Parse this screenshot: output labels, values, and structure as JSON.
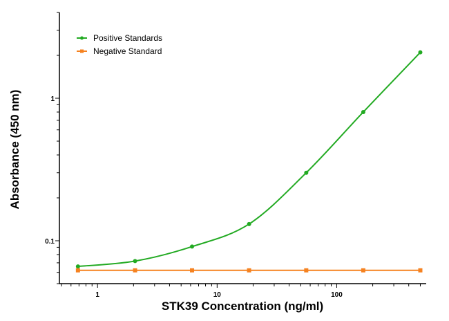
{
  "chart_data": {
    "type": "scatter",
    "xlabel": "STK39 Concentration (ng/ml)",
    "ylabel": "Absorbance (450 nm)",
    "x_scale": "log",
    "y_scale": "log",
    "xlim": [
      0.48,
      560
    ],
    "ylim": [
      0.05,
      4
    ],
    "x_tick_labels": [
      {
        "value": 1,
        "label": "1"
      },
      {
        "value": 10,
        "label": "10"
      },
      {
        "value": 100,
        "label": "100"
      }
    ],
    "y_tick_labels": [
      {
        "value": 0.1,
        "label": "0.1"
      },
      {
        "value": 1,
        "label": "1"
      }
    ],
    "grid": false,
    "legend_position": "top-left",
    "series": [
      {
        "name": "Positive Standards",
        "color": "#22aa22",
        "marker": "circle",
        "fit_curve": true,
        "x": [
          0.686,
          2.06,
          6.17,
          18.5,
          55.6,
          166.7,
          500
        ],
        "y": [
          0.066,
          0.072,
          0.091,
          0.131,
          0.3,
          0.8,
          2.1
        ]
      },
      {
        "name": "Negative Standard",
        "color": "#f58220",
        "marker": "square",
        "fit_curve": false,
        "x": [
          0.686,
          2.06,
          6.17,
          18.5,
          55.6,
          166.7,
          500
        ],
        "y": [
          0.062,
          0.062,
          0.062,
          0.062,
          0.062,
          0.062,
          0.062
        ]
      }
    ]
  }
}
